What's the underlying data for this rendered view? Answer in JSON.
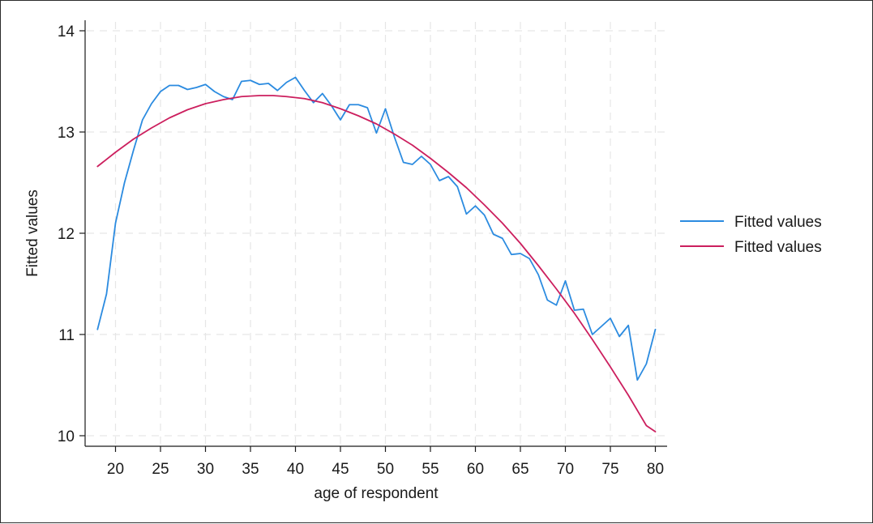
{
  "chart_data": {
    "type": "line",
    "title": "",
    "xlabel": "age of respondent",
    "ylabel": "Fitted values",
    "xlim": [
      17,
      81
    ],
    "ylim": [
      10,
      14
    ],
    "x_ticks": [
      "20",
      "25",
      "30",
      "35",
      "40",
      "45",
      "50",
      "55",
      "60",
      "65",
      "70",
      "75",
      "80"
    ],
    "y_ticks": [
      "10",
      "11",
      "12",
      "13",
      "14"
    ],
    "grid": true,
    "legend_position": "right",
    "series": [
      {
        "name": "Fitted values",
        "color": "#2b8be0",
        "x": [
          18,
          19,
          20,
          21,
          22,
          23,
          24,
          25,
          26,
          27,
          28,
          29,
          30,
          31,
          32,
          33,
          34,
          35,
          36,
          37,
          38,
          39,
          40,
          41,
          42,
          43,
          44,
          45,
          46,
          47,
          48,
          49,
          50,
          51,
          52,
          53,
          54,
          55,
          56,
          57,
          58,
          59,
          60,
          61,
          62,
          63,
          64,
          65,
          66,
          67,
          68,
          69,
          70,
          71,
          72,
          73,
          74,
          75,
          76,
          77,
          78,
          79,
          80
        ],
        "y": [
          11.05,
          11.4,
          12.1,
          12.5,
          12.82,
          13.12,
          13.28,
          13.4,
          13.46,
          13.46,
          13.42,
          13.44,
          13.47,
          13.4,
          13.35,
          13.32,
          13.5,
          13.51,
          13.47,
          13.48,
          13.41,
          13.49,
          13.54,
          13.41,
          13.29,
          13.38,
          13.26,
          13.12,
          13.27,
          13.27,
          13.24,
          12.99,
          13.23,
          12.95,
          12.7,
          12.68,
          12.76,
          12.68,
          12.52,
          12.56,
          12.46,
          12.19,
          12.27,
          12.18,
          11.99,
          11.95,
          11.79,
          11.8,
          11.75,
          11.59,
          11.34,
          11.29,
          11.53,
          11.24,
          11.25,
          11.0,
          11.08,
          11.16,
          10.98,
          11.09,
          10.55,
          10.71,
          11.05
        ]
      },
      {
        "name": "Fitted values",
        "color": "#cc1f5e",
        "x": [
          18,
          20,
          22,
          24,
          26,
          28,
          30,
          32,
          34,
          36,
          37.5,
          39,
          41,
          43,
          45,
          47,
          49,
          51,
          53,
          55,
          57,
          59,
          61,
          63,
          65,
          67,
          69,
          71,
          73,
          75,
          77,
          79,
          80
        ],
        "y": [
          12.66,
          12.8,
          12.93,
          13.04,
          13.14,
          13.22,
          13.28,
          13.32,
          13.35,
          13.36,
          13.36,
          13.35,
          13.33,
          13.29,
          13.23,
          13.16,
          13.08,
          12.98,
          12.87,
          12.74,
          12.6,
          12.45,
          12.28,
          12.1,
          11.9,
          11.68,
          11.45,
          11.21,
          10.95,
          10.68,
          10.4,
          10.1,
          10.04
        ]
      }
    ]
  }
}
